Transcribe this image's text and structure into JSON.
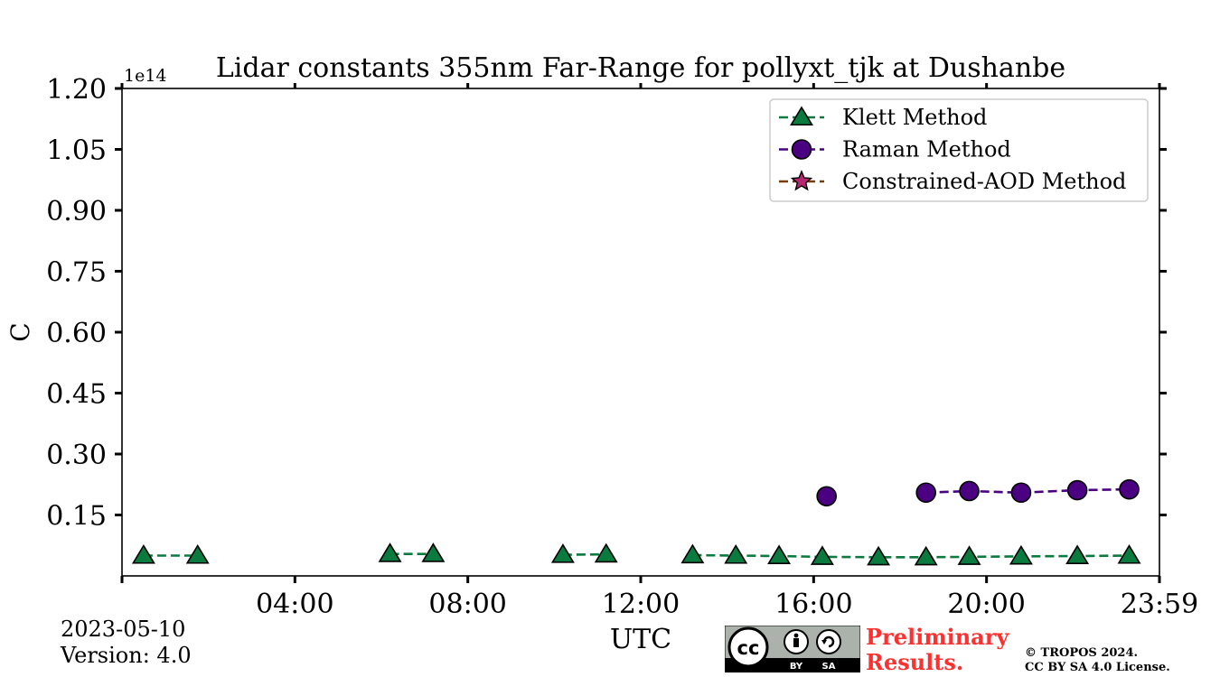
{
  "chart_data": {
    "type": "line",
    "title": "Lidar constants 355nm Far-Range for pollyxt_tjk at Dushanbe",
    "xlabel": "UTC",
    "ylabel": "C",
    "y_multiplier_label": "1e14",
    "xlim_hours": [
      0,
      24
    ],
    "ylim": [
      0,
      1.2
    ],
    "x_ticks": [
      {
        "hour": 0,
        "label": ""
      },
      {
        "hour": 4,
        "label": "04:00"
      },
      {
        "hour": 8,
        "label": "08:00"
      },
      {
        "hour": 12,
        "label": "12:00"
      },
      {
        "hour": 16,
        "label": "16:00"
      },
      {
        "hour": 20,
        "label": "20:00"
      },
      {
        "hour": 24,
        "label": "23:59"
      }
    ],
    "y_ticks": [
      {
        "value": 0.15,
        "label": "0.15"
      },
      {
        "value": 0.3,
        "label": "0.30"
      },
      {
        "value": 0.45,
        "label": "0.45"
      },
      {
        "value": 0.6,
        "label": "0.60"
      },
      {
        "value": 0.75,
        "label": "0.75"
      },
      {
        "value": 0.9,
        "label": "0.90"
      },
      {
        "value": 1.05,
        "label": "1.05"
      },
      {
        "value": 1.2,
        "label": "1.20"
      }
    ],
    "legend_position": "top-right",
    "series": [
      {
        "name": "Klett Method",
        "marker": "triangle",
        "color": "#0b7a3e",
        "segments": [
          [
            {
              "x": 0.5,
              "y": 0.05
            },
            {
              "x": 1.75,
              "y": 0.05
            }
          ],
          [
            {
              "x": 6.2,
              "y": 0.054
            },
            {
              "x": 7.2,
              "y": 0.054
            }
          ],
          [
            {
              "x": 10.2,
              "y": 0.052
            },
            {
              "x": 11.2,
              "y": 0.053
            }
          ],
          [
            {
              "x": 13.2,
              "y": 0.051
            },
            {
              "x": 14.2,
              "y": 0.05
            },
            {
              "x": 15.2,
              "y": 0.049
            },
            {
              "x": 16.2,
              "y": 0.047
            },
            {
              "x": 17.5,
              "y": 0.046
            },
            {
              "x": 18.6,
              "y": 0.046
            },
            {
              "x": 19.6,
              "y": 0.047
            },
            {
              "x": 20.8,
              "y": 0.048
            },
            {
              "x": 22.1,
              "y": 0.049
            },
            {
              "x": 23.3,
              "y": 0.05
            }
          ]
        ]
      },
      {
        "name": "Raman Method",
        "marker": "circle",
        "color": "#4b0082",
        "segments": [
          [
            {
              "x": 16.3,
              "y": 0.196
            }
          ],
          [
            {
              "x": 18.6,
              "y": 0.205
            },
            {
              "x": 19.6,
              "y": 0.209
            },
            {
              "x": 20.8,
              "y": 0.205
            },
            {
              "x": 22.1,
              "y": 0.211
            },
            {
              "x": 23.3,
              "y": 0.213
            }
          ]
        ]
      },
      {
        "name": "Constrained-AOD Method",
        "marker": "star",
        "color": "#b5276f",
        "line_color": "#7a3b00",
        "segments": []
      }
    ]
  },
  "footer": {
    "date": "2023-05-10",
    "version": "Version: 4.0",
    "preliminary_line1": "Preliminary",
    "preliminary_line2": "Results.",
    "copyright_line1": "© TROPOS 2024.",
    "copyright_line2": "CC BY SA 4.0 License.",
    "cc_logo_text": "cc",
    "cc_by_text": "BY",
    "cc_sa_text": "SA"
  }
}
